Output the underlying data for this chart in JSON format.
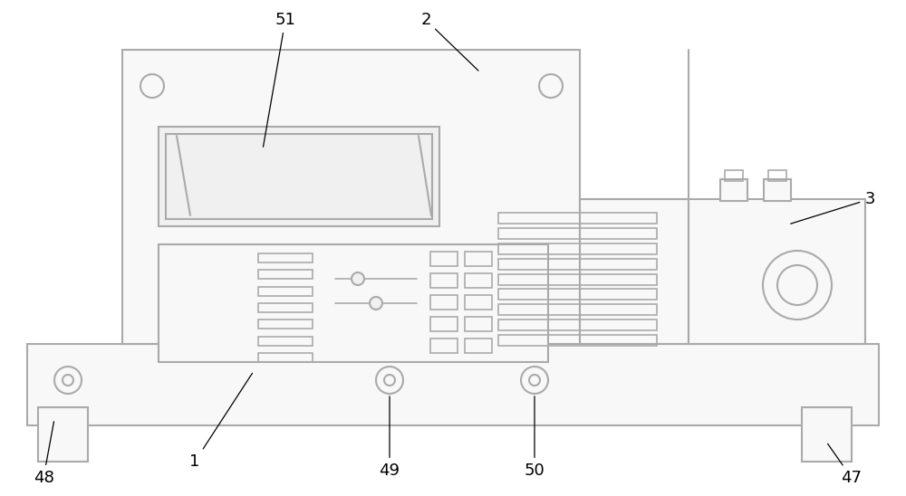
{
  "bg_color": "#ffffff",
  "line_color": "#aaaaaa",
  "line_width": 1.5,
  "fig_width": 10.0,
  "fig_height": 5.48,
  "label_fontsize": 13
}
